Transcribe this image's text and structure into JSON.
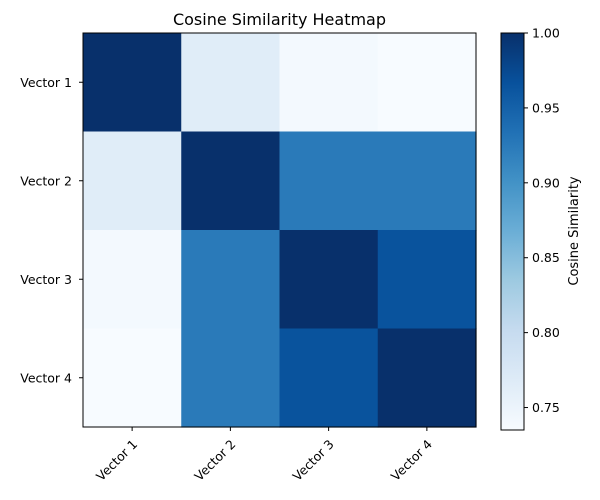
{
  "chart_data": {
    "type": "heatmap",
    "title": "Cosine Similarity Heatmap",
    "x_categories": [
      "Vector 1",
      "Vector 2",
      "Vector 3",
      "Vector 4"
    ],
    "y_categories": [
      "Vector 1",
      "Vector 2",
      "Vector 3",
      "Vector 4"
    ],
    "values": [
      [
        1.0,
        0.765,
        0.74,
        0.735
      ],
      [
        0.765,
        1.0,
        0.925,
        0.925
      ],
      [
        0.74,
        0.925,
        1.0,
        0.965
      ],
      [
        0.735,
        0.925,
        0.965,
        1.0
      ]
    ],
    "colorbar": {
      "label": "Cosine Similarity",
      "range": [
        0.735,
        1.0
      ],
      "ticks": [
        "0.75",
        "0.80",
        "0.85",
        "0.90",
        "0.95",
        "1.00"
      ],
      "colormap": "Blues"
    },
    "grid": false,
    "colors": {
      "low": "#f7fbff",
      "high": "#08306b"
    }
  }
}
